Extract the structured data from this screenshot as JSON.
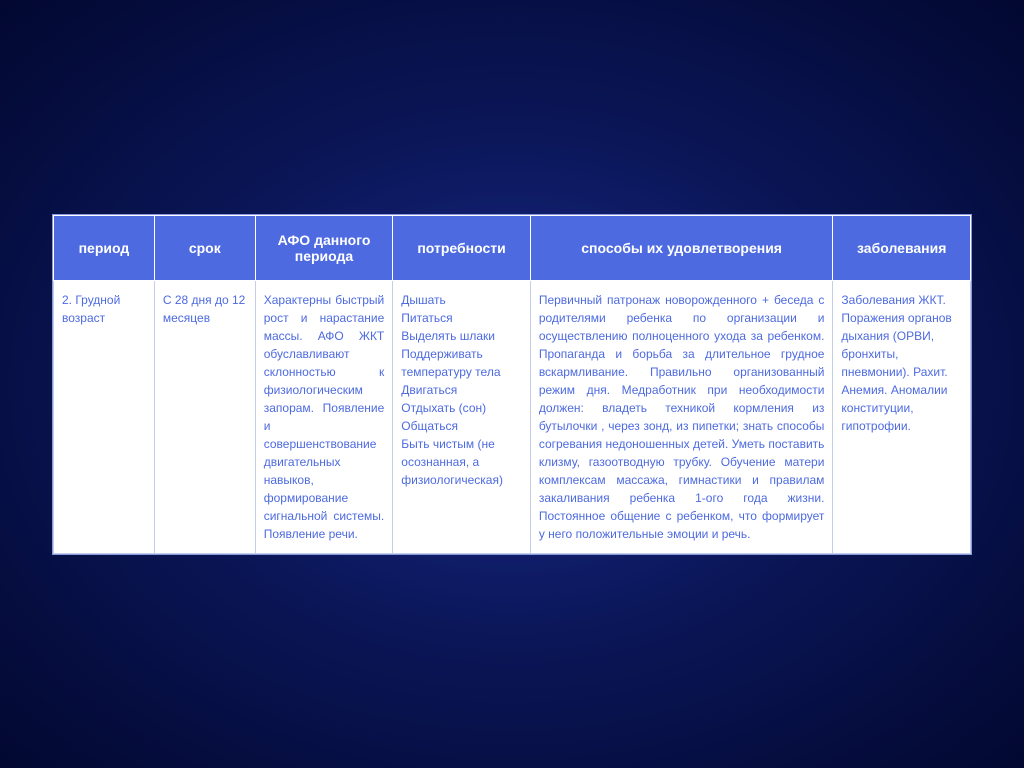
{
  "table": {
    "headers": {
      "period": "период",
      "term": "срок",
      "afo": "АФО данного периода",
      "needs": "потребности",
      "ways": "способы их удовлетворения",
      "diseases": "заболевания"
    },
    "row": {
      "period": "2. Грудной возраст",
      "term": "С 28 дня до 12 месяцев",
      "afo": "Характерны быстрый рост и нарастание массы. АФО ЖКТ обуславливают склонностью к физиологическим запорам. Появление и совершенствование двигательных навыков, формирование сигнальной системы. Появление речи.",
      "needs": "Дышать\nПитаться\nВыделять шлаки\nПоддерживать температуру тела\nДвигаться\nОтдыхать (сон)\nОбщаться\nБыть чистым (не осознанная, а физиологическая)",
      "ways": "Первичный патронаж новорожденного + беседа с родителями ребенка по организации и осуществлению полноценного ухода за ребенком. Пропаганда и борьба за длительное грудное вскармливание. Правильно организованный режим дня. Медработник при необходимости должен: владеть техникой кормления из бутылочки , через зонд, из пипетки; знать способы согревания недоношенных детей. Уметь поставить клизму, газоотводную трубку. Обучение матери комплексам массажа, гимнастики и правилам закаливания ребенка 1-ого года жизни. Постоянное общение с ребенком, что формирует у него положительные эмоции и речь.",
      "diseases": "Заболевания ЖКТ. Поражения органов дыхания (ОРВИ, бронхиты, пневмонии). Рахит. Анемия. Аномалии конституции, гипотрофии."
    }
  },
  "styling": {
    "header_bg": "#4d6ae0",
    "header_text": "#ffffff",
    "cell_bg": "#ffffff",
    "cell_text": "#4d6ae0",
    "border_color": "#c5cee8",
    "background_gradient_inner": "#1a2a8a",
    "background_gradient_outer": "#020830",
    "header_fontsize": 14,
    "body_fontsize": 12,
    "column_widths_pct": [
      11,
      11,
      15,
      15,
      33,
      15
    ]
  }
}
